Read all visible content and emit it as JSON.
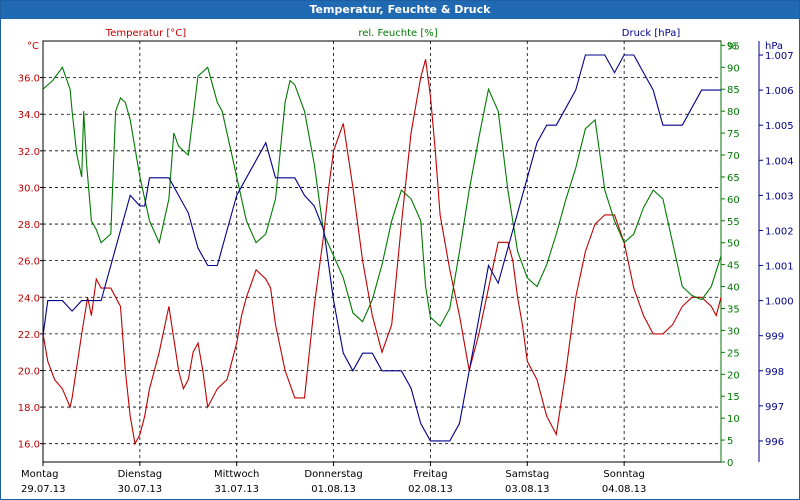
{
  "window": {
    "title": "Temperatur, Feuchte & Druck"
  },
  "chart_data": {
    "type": "line",
    "title": "Temperatur, Feuchte & Druck",
    "x_ticks": [
      {
        "day": "Montag",
        "date": "29.07.13"
      },
      {
        "day": "Dienstag",
        "date": "30.07.13"
      },
      {
        "day": "Mittwoch",
        "date": "31.07.13"
      },
      {
        "day": "Donnerstag",
        "date": "01.08.13"
      },
      {
        "day": "Freitag",
        "date": "02.08.13"
      },
      {
        "day": "Samstag",
        "date": "03.08.13"
      },
      {
        "day": "Sonntag",
        "date": "04.08.13"
      }
    ],
    "xlim_days": [
      0,
      7.0
    ],
    "axes": {
      "temperature": {
        "label": "Temperatur [°C]",
        "unit": "°C",
        "color": "#c00000",
        "ylim": [
          15,
          38
        ],
        "ticks": [
          "16.0",
          "18.0",
          "20.0",
          "22.0",
          "24.0",
          "26.0",
          "28.0",
          "30.0",
          "32.0",
          "34.0",
          "36.0"
        ]
      },
      "humidity": {
        "label": "rel. Feuchte [%]",
        "unit": "%",
        "color": "#007a00",
        "ylim": [
          0,
          96
        ],
        "ticks": [
          "0",
          "5",
          "10",
          "15",
          "20",
          "25",
          "30",
          "35",
          "40",
          "45",
          "50",
          "55",
          "60",
          "65",
          "70",
          "75",
          "80",
          "85",
          "90",
          "95"
        ]
      },
      "pressure": {
        "label": "Druck [hPa]",
        "unit": "hPa",
        "color": "#00008b",
        "ylim": [
          995.4,
          1007.4
        ],
        "ticks": [
          "996",
          "997",
          "998",
          "999",
          "1.000",
          "1.001",
          "1.002",
          "1.003",
          "1.004",
          "1.005",
          "1.006",
          "1.007"
        ]
      }
    },
    "series": [
      {
        "name": "Temperatur",
        "axis": "temperature",
        "color": "#c00000",
        "x": [
          0,
          0.05,
          0.12,
          0.2,
          0.28,
          0.3,
          0.4,
          0.46,
          0.5,
          0.55,
          0.6,
          0.7,
          0.8,
          0.85,
          0.9,
          0.95,
          1.0,
          1.05,
          1.1,
          1.15,
          1.2,
          1.3,
          1.4,
          1.45,
          1.5,
          1.55,
          1.6,
          1.65,
          1.7,
          1.8,
          1.9,
          1.95,
          2.0,
          2.05,
          2.1,
          2.2,
          2.3,
          2.35,
          2.4,
          2.5,
          2.6,
          2.7,
          2.8,
          2.9,
          2.95,
          3.0,
          3.1,
          3.2,
          3.3,
          3.4,
          3.5,
          3.6,
          3.7,
          3.8,
          3.9,
          3.95,
          4.0,
          4.05,
          4.1,
          4.2,
          4.3,
          4.4,
          4.5,
          4.6,
          4.7,
          4.8,
          4.85,
          4.9,
          4.95,
          5.0,
          5.05,
          5.1,
          5.2,
          5.3,
          5.4,
          5.5,
          5.6,
          5.7,
          5.8,
          5.9,
          6.0,
          6.1,
          6.2,
          6.3,
          6.4,
          6.5,
          6.6,
          6.7,
          6.8,
          6.9,
          6.95,
          7.0
        ],
        "values": [
          22.0,
          20.5,
          19.5,
          19.0,
          18.0,
          18.5,
          22.0,
          24.0,
          23.0,
          25.0,
          24.5,
          24.5,
          23.5,
          20.0,
          17.5,
          16.0,
          16.5,
          17.5,
          19.0,
          20.0,
          21.0,
          23.5,
          20.0,
          19.0,
          19.5,
          21.0,
          21.5,
          20.0,
          18.0,
          19.0,
          19.5,
          20.5,
          21.5,
          23.0,
          24.0,
          25.5,
          25.0,
          24.5,
          22.5,
          20.0,
          18.5,
          18.5,
          23.5,
          27.5,
          30.0,
          32.0,
          33.5,
          30.0,
          26.0,
          23.0,
          21.0,
          22.5,
          28.0,
          33.0,
          36.0,
          37.0,
          35.0,
          32.0,
          28.5,
          25.5,
          23.0,
          20.0,
          22.0,
          24.5,
          27.0,
          27.0,
          26.0,
          24.0,
          22.5,
          20.5,
          20.0,
          19.5,
          17.5,
          16.5,
          20.0,
          24.0,
          26.5,
          28.0,
          28.5,
          28.5,
          27.0,
          24.5,
          23.0,
          22.0,
          22.0,
          22.5,
          23.5,
          24.0,
          24.0,
          23.5,
          23.0,
          24.0
        ]
      },
      {
        "name": "rel. Feuchte",
        "axis": "humidity",
        "color": "#007a00",
        "x": [
          0,
          0.05,
          0.1,
          0.2,
          0.28,
          0.3,
          0.35,
          0.4,
          0.42,
          0.45,
          0.5,
          0.55,
          0.6,
          0.7,
          0.75,
          0.8,
          0.85,
          0.9,
          1.0,
          1.1,
          1.2,
          1.3,
          1.35,
          1.4,
          1.5,
          1.6,
          1.7,
          1.8,
          1.85,
          1.9,
          1.95,
          2.0,
          2.1,
          2.2,
          2.3,
          2.4,
          2.5,
          2.55,
          2.6,
          2.7,
          2.8,
          2.9,
          3.0,
          3.1,
          3.2,
          3.3,
          3.4,
          3.5,
          3.6,
          3.7,
          3.8,
          3.9,
          3.95,
          4.0,
          4.1,
          4.2,
          4.3,
          4.4,
          4.5,
          4.6,
          4.7,
          4.8,
          4.9,
          5.0,
          5.1,
          5.2,
          5.3,
          5.4,
          5.5,
          5.6,
          5.7,
          5.8,
          5.9,
          6.0,
          6.1,
          6.2,
          6.3,
          6.4,
          6.5,
          6.6,
          6.7,
          6.8,
          6.9,
          7.0
        ],
        "values": [
          85,
          86,
          87,
          90,
          85,
          80,
          70,
          65,
          80,
          68,
          55,
          53,
          50,
          52,
          80,
          83,
          82,
          78,
          65,
          55,
          50,
          60,
          75,
          72,
          70,
          88,
          90,
          82,
          80,
          75,
          70,
          65,
          55,
          50,
          52,
          60,
          82,
          87,
          86,
          80,
          68,
          52,
          47,
          42,
          34,
          32,
          37,
          45,
          55,
          62,
          60,
          55,
          40,
          33,
          31,
          35,
          48,
          62,
          74,
          85,
          80,
          62,
          48,
          42,
          40,
          45,
          52,
          60,
          67,
          76,
          78,
          62,
          55,
          50,
          52,
          58,
          62,
          60,
          50,
          40,
          38,
          37,
          40,
          47
        ]
      },
      {
        "name": "Druck",
        "axis": "pressure",
        "color": "#00008b",
        "x": [
          0,
          0.05,
          0.1,
          0.2,
          0.3,
          0.4,
          0.5,
          0.6,
          0.7,
          0.8,
          0.9,
          1.0,
          1.05,
          1.1,
          1.2,
          1.3,
          1.4,
          1.5,
          1.6,
          1.7,
          1.8,
          1.9,
          2.0,
          2.1,
          2.2,
          2.3,
          2.4,
          2.5,
          2.6,
          2.7,
          2.8,
          2.9,
          3.0,
          3.1,
          3.2,
          3.3,
          3.4,
          3.5,
          3.6,
          3.7,
          3.8,
          3.9,
          4.0,
          4.1,
          4.2,
          4.3,
          4.4,
          4.5,
          4.6,
          4.7,
          4.8,
          4.9,
          5.0,
          5.1,
          5.2,
          5.3,
          5.4,
          5.5,
          5.6,
          5.7,
          5.8,
          5.9,
          6.0,
          6.1,
          6.2,
          6.3,
          6.4,
          6.5,
          6.6,
          6.7,
          6.8,
          6.9,
          7.0
        ],
        "values": [
          999.0,
          1000.0,
          1000.0,
          1000.0,
          999.7,
          1000.0,
          1000.0,
          1000.0,
          1001.0,
          1002.0,
          1003.0,
          1002.7,
          1002.7,
          1003.5,
          1003.5,
          1003.5,
          1003.0,
          1002.5,
          1001.5,
          1001.0,
          1001.0,
          1002.0,
          1003.0,
          1003.5,
          1004.0,
          1004.5,
          1003.5,
          1003.5,
          1003.5,
          1003.0,
          1002.7,
          1002.0,
          1000.0,
          998.5,
          998.0,
          998.5,
          998.5,
          998.0,
          998.0,
          998.0,
          997.5,
          996.5,
          996.0,
          996.0,
          996.0,
          996.5,
          998.0,
          999.5,
          1001.0,
          1000.5,
          1001.5,
          1002.5,
          1003.5,
          1004.5,
          1005.0,
          1005.0,
          1005.5,
          1006.0,
          1007.0,
          1007.0,
          1007.0,
          1006.5,
          1007.0,
          1007.0,
          1006.5,
          1006.0,
          1005.0,
          1005.0,
          1005.0,
          1005.5,
          1006.0,
          1006.0,
          1006.0
        ]
      }
    ]
  }
}
